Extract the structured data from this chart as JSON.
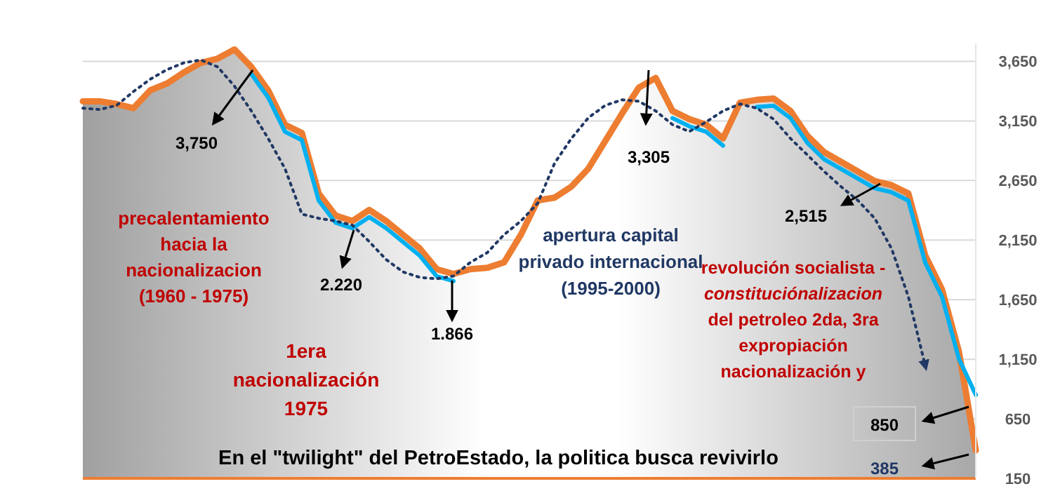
{
  "chart_data": {
    "type": "line",
    "categories": [
      null,
      null,
      null,
      null,
      null,
      null,
      null,
      null,
      null,
      null,
      null,
      null,
      null,
      null,
      null,
      null,
      null,
      null,
      null,
      null,
      null,
      null,
      null,
      null,
      null,
      null,
      null,
      null,
      null,
      null,
      null,
      null,
      null,
      null,
      null,
      null,
      null,
      null,
      null,
      null,
      null,
      null,
      null,
      null,
      null,
      null,
      null,
      null,
      null,
      null,
      null,
      null,
      null,
      null
    ],
    "series": [
      {
        "type": "area",
        "color": "#ed7d31",
        "values": [
          3315,
          3315,
          3292,
          3257,
          3407,
          3465,
          3558,
          3638,
          3673,
          3750,
          3604,
          3407,
          3119,
          3049,
          2541,
          2356,
          2310,
          2403,
          2310,
          2195,
          2079,
          1906,
          1866,
          1906,
          1917,
          1963,
          2195,
          2483,
          2506,
          2599,
          2749,
          2980,
          3211,
          3430,
          3511,
          3234,
          3165,
          3119,
          3003,
          3303,
          3327,
          3338,
          3234,
          3026,
          2888,
          2807,
          2726,
          2645,
          2611,
          2541,
          2021,
          1733,
          1213,
          385
        ]
      },
      {
        "color": "#00b0f0",
        "values": [
          null,
          null,
          null,
          null,
          null,
          null,
          null,
          null,
          null,
          null,
          3544,
          3347,
          3059,
          2989,
          2481,
          2296,
          2250,
          2343,
          2250,
          2135,
          2019,
          1846,
          1806,
          null,
          null,
          null,
          null,
          null,
          null,
          null,
          null,
          null,
          null,
          null,
          null,
          3174,
          3105,
          3059,
          2943,
          null,
          3267,
          3278,
          3174,
          2966,
          2828,
          2747,
          2666,
          2585,
          2551,
          2481,
          1961,
          1673,
          1153,
          850
        ]
      },
      {
        "color": "#203864",
        "line_style": "dotted",
        "values": [
          3257,
          3246,
          3280,
          3396,
          3500,
          3581,
          3638,
          3662,
          3604,
          3442,
          3234,
          3003,
          2749,
          2368,
          2333,
          2310,
          2275,
          2137,
          1987,
          1883,
          1837,
          1825,
          1848,
          1963,
          2044,
          2195,
          2310,
          2460,
          2795,
          3003,
          3176,
          3280,
          3327,
          3315,
          3234,
          3119,
          3061,
          3142,
          3234,
          3292,
          3257,
          3165,
          3003,
          2865,
          2726,
          2599,
          2483,
          2333,
          2079,
          1675,
          1097,
          null,
          null,
          null
        ]
      }
    ],
    "ylim": [
      150,
      3800
    ],
    "yticks": [
      {
        "value": 150,
        "label": "150"
      },
      {
        "value": 650,
        "label": "650"
      },
      {
        "value": 1150,
        "label": "1,150"
      },
      {
        "value": 1650,
        "label": "1,650"
      },
      {
        "value": 2150,
        "label": "2,150"
      },
      {
        "value": 2650,
        "label": "2,650"
      },
      {
        "value": 3150,
        "label": "3,150"
      },
      {
        "value": 3650,
        "label": "3,650"
      }
    ],
    "grid": true,
    "annotations": [
      "3,750",
      "2.220",
      "1.866",
      "3,305",
      "2,515",
      "850",
      "385",
      "precalentamiento\nhacia la\nnacionalizacion\n(1960 - 1975)",
      "1era\nnacionalización\n1975",
      "apertura capital\nprivado internacional\n(1995-2000)",
      "revolución socialista -\nconstituciónalizacion\ndel petroleo 2da, 3ra\nexpropiación\nnacionalización y",
      "En el \"twilight\" del PetroEstado, la politica busca revivirlo"
    ]
  }
}
